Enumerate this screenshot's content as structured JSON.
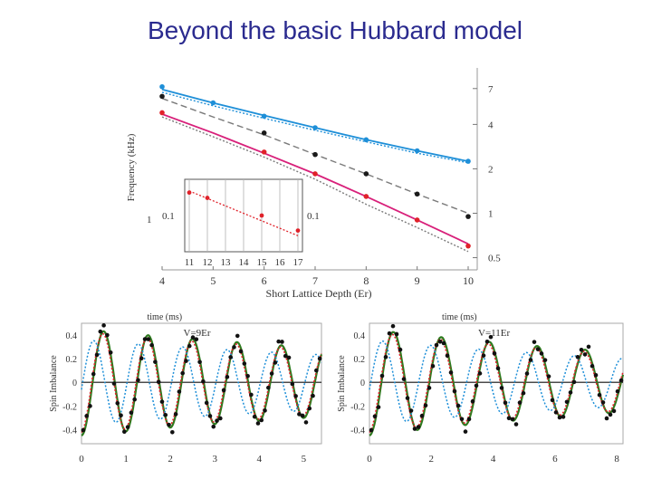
{
  "slide": {
    "title": "Beyond the basic Hubbard model"
  },
  "chart_data": [
    {
      "type": "line",
      "name": "frequency-vs-depth",
      "xlabel": "Short Lattice Depth (Er)",
      "ylabel": "Frequency (kHz)",
      "xlim": [
        4,
        10
      ],
      "x_ticks": [
        "4",
        "5",
        "6",
        "7",
        "8",
        "9",
        "10"
      ],
      "y_scale": "log",
      "ylim": [
        0.45,
        9
      ],
      "y_ticks_right": [
        "7",
        "4",
        "2",
        "1",
        "0.5"
      ],
      "y_tick_left": "1",
      "grid": false,
      "colors": {
        "blue": "#1e8fd8",
        "black": "#1a1a1a",
        "gray": "#7a7a7a",
        "magenta": "#d8207a",
        "red": "#e0222a"
      },
      "series": [
        {
          "color": "blue",
          "style": "solid",
          "x": [
            4,
            5,
            6,
            7,
            8,
            9,
            10
          ],
          "y": [
            6.9,
            5.6,
            4.6,
            3.8,
            3.15,
            2.65,
            2.25
          ]
        },
        {
          "color": "blue",
          "style": "dotted",
          "x": [
            4,
            5,
            6,
            7,
            8,
            9,
            10
          ],
          "y": [
            6.6,
            5.35,
            4.4,
            3.65,
            3.05,
            2.55,
            2.2
          ]
        },
        {
          "color": "black",
          "style": "dashed",
          "x": [
            4,
            5,
            6,
            7,
            8,
            9,
            10
          ],
          "y": [
            6.0,
            4.5,
            3.4,
            2.5,
            1.85,
            1.35,
            1.0
          ]
        },
        {
          "color": "magenta",
          "style": "solid",
          "x": [
            4,
            5,
            6,
            7,
            8,
            9,
            10
          ],
          "y": [
            4.7,
            3.5,
            2.55,
            1.85,
            1.3,
            0.9,
            0.62
          ]
        },
        {
          "color": "black",
          "style": "dotted",
          "x": [
            4,
            5,
            6,
            7,
            8,
            9,
            10
          ],
          "y": [
            4.5,
            3.3,
            2.4,
            1.7,
            1.15,
            0.8,
            0.55
          ]
        }
      ],
      "points": [
        {
          "color": "blue",
          "x": [
            4,
            5,
            6,
            7,
            8,
            9,
            10
          ],
          "y": [
            7.2,
            5.6,
            4.55,
            3.8,
            3.15,
            2.65,
            2.25
          ]
        },
        {
          "color": "black",
          "x": [
            4,
            6,
            7,
            8,
            9,
            10
          ],
          "y": [
            6.2,
            3.5,
            2.5,
            1.85,
            1.35,
            0.95
          ]
        },
        {
          "color": "red",
          "x": [
            4,
            6,
            7,
            8,
            9,
            10
          ],
          "y": [
            4.8,
            2.6,
            1.85,
            1.3,
            0.9,
            0.6
          ]
        }
      ],
      "inset": {
        "x_ticks": [
          "11",
          "12",
          "13",
          "14",
          "15",
          "16",
          "17"
        ],
        "xlim": [
          11,
          17
        ],
        "y_tick_left": "0.1",
        "y_tick_right": "0.1",
        "series": [
          {
            "color": "red",
            "style": "dotted",
            "x": [
              11,
              17
            ],
            "y": [
              0.16,
              0.068
            ]
          }
        ],
        "points": {
          "color": "red",
          "x": [
            11,
            12,
            15,
            17
          ],
          "y": [
            0.155,
            0.14,
            0.1,
            0.075
          ]
        }
      }
    },
    {
      "type": "line",
      "name": "spin-imbalance-9Er",
      "top_label": "time (ms)",
      "annotation": "V=9Er",
      "ylabel": "Spin Imbalance",
      "xlim": [
        0,
        5.4
      ],
      "ylim": [
        -0.52,
        0.5
      ],
      "x_ticks": [
        "0",
        "1",
        "2",
        "3",
        "4",
        "5"
      ],
      "y_ticks": [
        "0.4",
        "0.2",
        "0",
        "-0.2",
        "-0.4"
      ],
      "period": 1.0,
      "decay": 0.08,
      "series_colors": {
        "fit_green": "#2e7a1e",
        "fit_red": "#e0222a",
        "model_blue": "#1e8fd8",
        "data": "#111111"
      }
    },
    {
      "type": "line",
      "name": "spin-imbalance-11Er",
      "top_label": "time (ms)",
      "annotation": "V=11Er",
      "ylabel": "Spin Imbalance",
      "xlim": [
        0,
        8.2
      ],
      "ylim": [
        -0.52,
        0.5
      ],
      "x_ticks": [
        "0",
        "2",
        "4",
        "6",
        "8"
      ],
      "y_ticks": [
        "0.4",
        "0.2",
        "0",
        "-0.2",
        "-0.4"
      ],
      "period": 1.55,
      "decay": 0.07,
      "series_colors": {
        "fit_green": "#2e7a1e",
        "fit_red": "#e0222a",
        "model_blue": "#1e8fd8",
        "data": "#111111"
      }
    }
  ]
}
